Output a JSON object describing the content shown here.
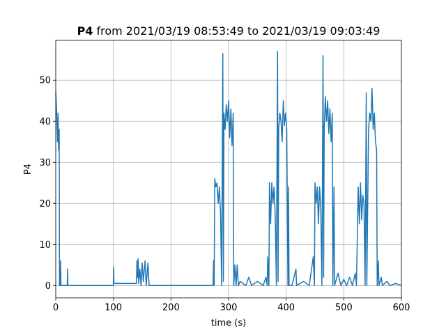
{
  "chart_data": {
    "type": "line",
    "title_parts": [
      "P4",
      "from 2021/03/19 08:53:49 to 2021/03/19 09:03:49"
    ],
    "x_label": "time (s)",
    "y_label": "P4",
    "xlim": [
      0,
      600
    ],
    "ylim": [
      -3.0,
      59.7
    ],
    "xticks": [
      0,
      100,
      200,
      300,
      400,
      500,
      600
    ],
    "yticks": [
      0,
      10,
      20,
      30,
      40,
      50
    ],
    "grid": true,
    "series": [
      {
        "color": "#1f77b4",
        "x": [
          0,
          1,
          2,
          3,
          4,
          5,
          6,
          6.5,
          8,
          8.5,
          9,
          20,
          20.5,
          21,
          100,
          100.5,
          101,
          140,
          141,
          142,
          143,
          144,
          146,
          148,
          150,
          152,
          155,
          157,
          160,
          162,
          273,
          274,
          275,
          276,
          278,
          280,
          282,
          284,
          286,
          288,
          290,
          291,
          292,
          294,
          296,
          298,
          300,
          302,
          304,
          306,
          308,
          309,
          311,
          313,
          315,
          317,
          320,
          330,
          335,
          340,
          350,
          360,
          365,
          367,
          368,
          370,
          371,
          373,
          375,
          377,
          379,
          381,
          383,
          385,
          386,
          387,
          389,
          391,
          393,
          395,
          397,
          399,
          401,
          403,
          404,
          405,
          410,
          417,
          418,
          430,
          440,
          447,
          449,
          450,
          452,
          454,
          456,
          458,
          460,
          462,
          464,
          465,
          466,
          468,
          470,
          472,
          474,
          476,
          478,
          480,
          481,
          483,
          484,
          490,
          495,
          500,
          505,
          510,
          515,
          520,
          522,
          525,
          527,
          529,
          531,
          533,
          535,
          537,
          539,
          540,
          543,
          545,
          547,
          549,
          551,
          553,
          555,
          557,
          558,
          560,
          561,
          565,
          567,
          575,
          580,
          590,
          600
        ],
        "values": [
          47,
          44,
          40,
          35,
          42,
          33,
          38,
          0,
          0,
          6,
          0,
          0,
          4,
          0,
          0,
          4.5,
          0.5,
          0.5,
          6,
          2,
          6.5,
          0.5,
          4,
          0,
          5.5,
          1,
          6,
          0,
          5.5,
          0,
          0,
          6,
          0,
          26,
          24,
          25,
          20,
          24,
          18,
          0,
          56.5,
          1,
          42,
          38,
          44,
          40,
          45,
          36,
          43,
          34,
          42,
          0,
          5,
          0,
          5,
          0,
          1,
          0,
          2,
          0,
          1,
          0,
          2,
          0,
          7,
          0,
          25,
          15,
          25,
          20,
          24,
          17,
          0,
          57,
          1,
          38,
          42,
          40,
          35,
          45,
          39,
          42,
          38,
          0,
          24,
          0,
          0,
          4,
          0,
          1,
          0,
          7,
          0,
          25,
          20,
          24,
          15,
          24,
          19,
          0,
          56,
          2,
          38,
          46,
          40,
          45,
          37,
          43,
          35,
          42,
          0,
          24,
          0,
          3,
          0,
          1.5,
          0,
          2,
          0,
          3,
          0,
          24,
          15,
          25,
          16,
          22,
          20,
          0,
          47,
          0,
          38,
          42,
          40,
          48,
          38,
          42,
          35,
          33,
          0,
          6,
          0,
          2,
          0,
          1,
          0,
          0.5,
          0
        ]
      }
    ]
  }
}
